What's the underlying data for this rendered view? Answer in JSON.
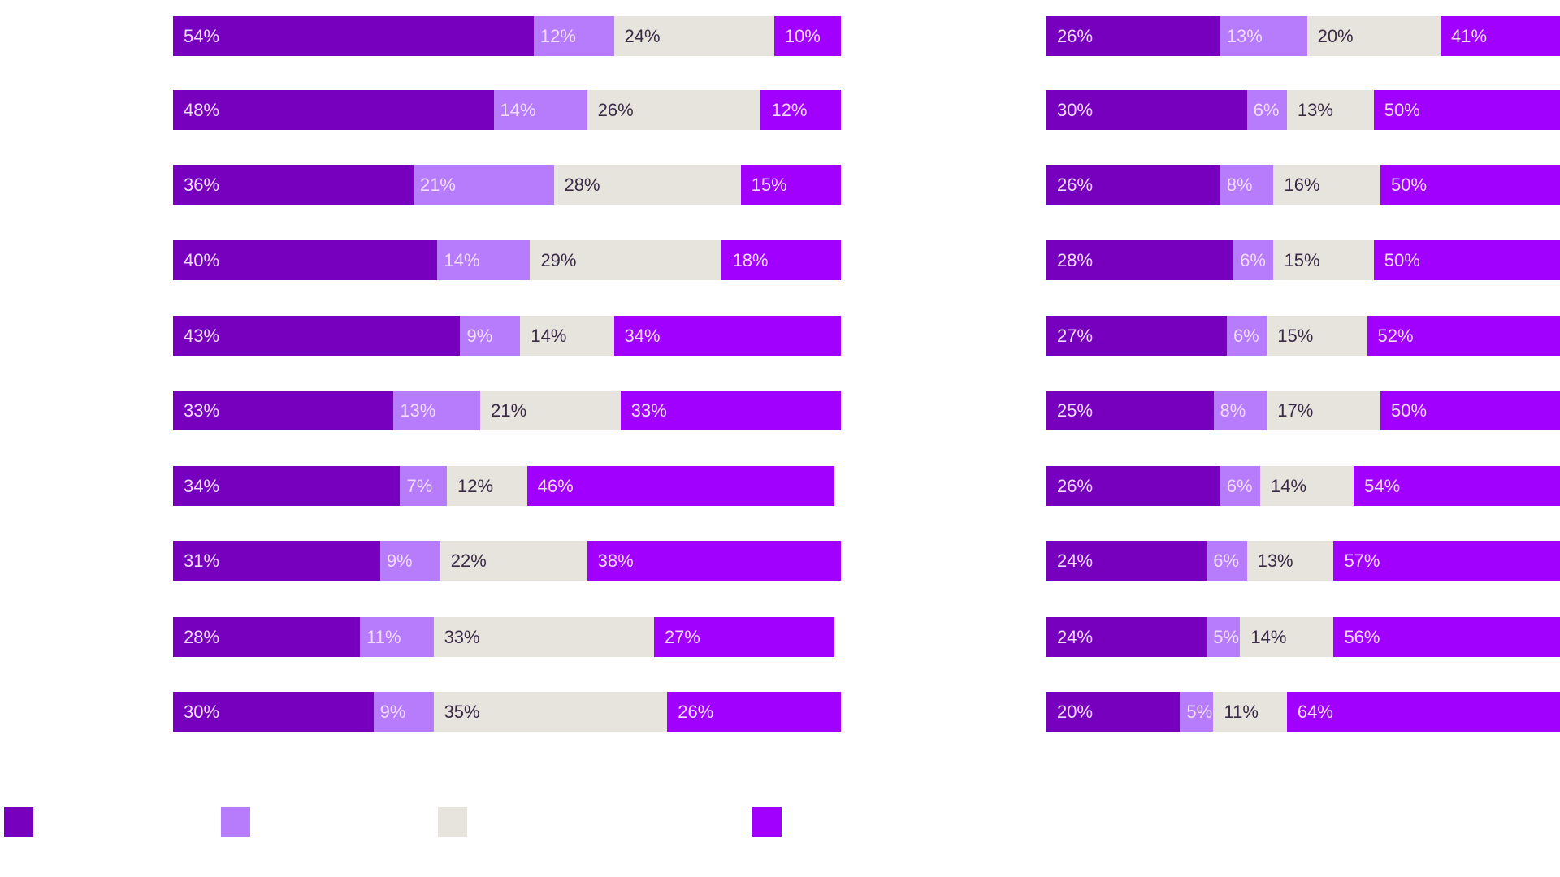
{
  "chart_data": [
    {
      "type": "bar",
      "orientation": "horizontal",
      "stacked": true,
      "xlim": [
        0,
        100
      ],
      "unit": "%",
      "series": [
        {
          "values": [
            54,
            48,
            36,
            40,
            43,
            33,
            34,
            31,
            28,
            30
          ]
        },
        {
          "values": [
            12,
            14,
            21,
            14,
            9,
            13,
            7,
            9,
            11,
            9
          ]
        },
        {
          "values": [
            24,
            26,
            28,
            29,
            14,
            21,
            12,
            22,
            33,
            35
          ]
        },
        {
          "values": [
            10,
            12,
            15,
            18,
            34,
            33,
            46,
            38,
            27,
            26
          ]
        }
      ]
    },
    {
      "type": "bar",
      "orientation": "horizontal",
      "stacked": true,
      "xlim": [
        0,
        100
      ],
      "unit": "%",
      "series": [
        {
          "values": [
            26,
            30,
            26,
            28,
            27,
            25,
            26,
            24,
            24,
            20
          ]
        },
        {
          "values": [
            13,
            6,
            8,
            6,
            6,
            8,
            6,
            6,
            5,
            5
          ]
        },
        {
          "values": [
            20,
            13,
            16,
            15,
            15,
            17,
            14,
            13,
            14,
            11
          ]
        },
        {
          "values": [
            41,
            50,
            50,
            50,
            52,
            50,
            54,
            57,
            56,
            64
          ]
        }
      ]
    }
  ],
  "colors": [
    "#7600BE",
    "#B67CFC",
    "#E6E4DC",
    "#A100FF"
  ],
  "legend": {
    "placement": "bottom",
    "entries": 4
  }
}
